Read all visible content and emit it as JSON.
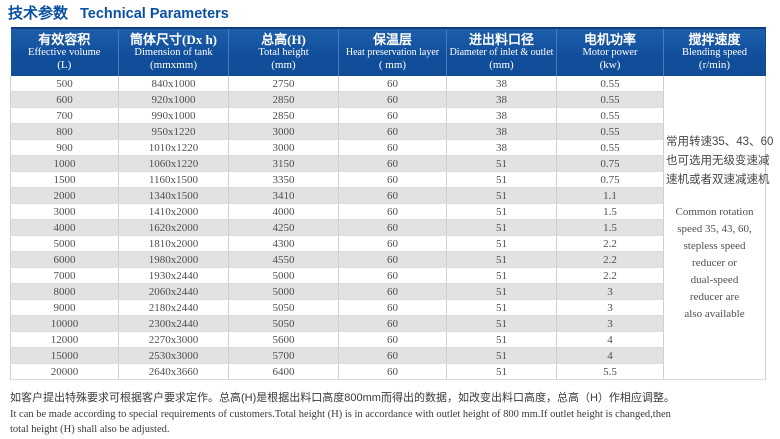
{
  "title": {
    "cn": "技术参数",
    "en": "Technical Parameters"
  },
  "colors": {
    "header_blue": "#114f9c",
    "title_blue": "#0b51a3",
    "stripe_gray": "#e2e2e2"
  },
  "table": {
    "columns": [
      {
        "cn": "有效容积",
        "en": "Effective volume",
        "unit": "(L)"
      },
      {
        "cn": "筒体尺寸(Dx h)",
        "en": "Dimension of tank",
        "unit": "(mmxmm)"
      },
      {
        "cn": "总高(H)",
        "en": "Total height",
        "unit": "(mm)"
      },
      {
        "cn": "保温层",
        "en": "Heat preservation layer",
        "unit": "( mm)"
      },
      {
        "cn": "进出料口径",
        "en": "Diameter of inlet & outlet",
        "unit": "(mm)"
      },
      {
        "cn": "电机功率",
        "en": "Motor power",
        "unit": "(kw)"
      },
      {
        "cn": "搅拌速度",
        "en": "Blending speed",
        "unit": "(r/min)"
      }
    ],
    "rows": [
      [
        "500",
        "840x1000",
        "2750",
        "60",
        "38",
        "0.55"
      ],
      [
        "600",
        "920x1000",
        "2850",
        "60",
        "38",
        "0.55"
      ],
      [
        "700",
        "990x1000",
        "2850",
        "60",
        "38",
        "0.55"
      ],
      [
        "800",
        "950x1220",
        "3000",
        "60",
        "38",
        "0.55"
      ],
      [
        "900",
        "1010x1220",
        "3000",
        "60",
        "38",
        "0.55"
      ],
      [
        "1000",
        "1060x1220",
        "3150",
        "60",
        "51",
        "0.75"
      ],
      [
        "1500",
        "1160x1500",
        "3350",
        "60",
        "51",
        "0.75"
      ],
      [
        "2000",
        "1340x1500",
        "3410",
        "60",
        "51",
        "1.1"
      ],
      [
        "3000",
        "1410x2000",
        "4000",
        "60",
        "51",
        "1.5"
      ],
      [
        "4000",
        "1620x2000",
        "4250",
        "60",
        "51",
        "1.5"
      ],
      [
        "5000",
        "1810x2000",
        "4300",
        "60",
        "51",
        "2.2"
      ],
      [
        "6000",
        "1980x2000",
        "4550",
        "60",
        "51",
        "2.2"
      ],
      [
        "7000",
        "1930x2440",
        "5000",
        "60",
        "51",
        "2.2"
      ],
      [
        "8000",
        "2060x2440",
        "5000",
        "60",
        "51",
        "3"
      ],
      [
        "9000",
        "2180x2440",
        "5050",
        "60",
        "51",
        "3"
      ],
      [
        "10000",
        "2300x2440",
        "5050",
        "60",
        "51",
        "3"
      ],
      [
        "12000",
        "2270x3000",
        "5600",
        "60",
        "51",
        "4"
      ],
      [
        "15000",
        "2530x3000",
        "5700",
        "60",
        "51",
        "4"
      ],
      [
        "20000",
        "2640x3660",
        "6400",
        "60",
        "51",
        "5.5"
      ]
    ],
    "speed_note": {
      "cn": [
        "常用转速35、43、60",
        "也可选用无级变速减",
        "速机或者双速减速机"
      ],
      "en": [
        "Common rotation",
        "speed 35, 43, 60,",
        "stepless speed",
        "reducer or",
        "dual-speed",
        "reducer are",
        "also available"
      ]
    }
  },
  "footnote": {
    "cn": "如客户提出特殊要求可根据客户要求定作。总高(H)是根据出料口高度800mm而得出的数据，如改变出料口高度，总高（H）作相应调整。",
    "en_line1": "It can be made according to special requirements of customers.Total height (H) is in accordance with outlet height of 800 mm.If outlet height is changed,then",
    "en_line2": "total height (H) shall also be adjusted."
  }
}
